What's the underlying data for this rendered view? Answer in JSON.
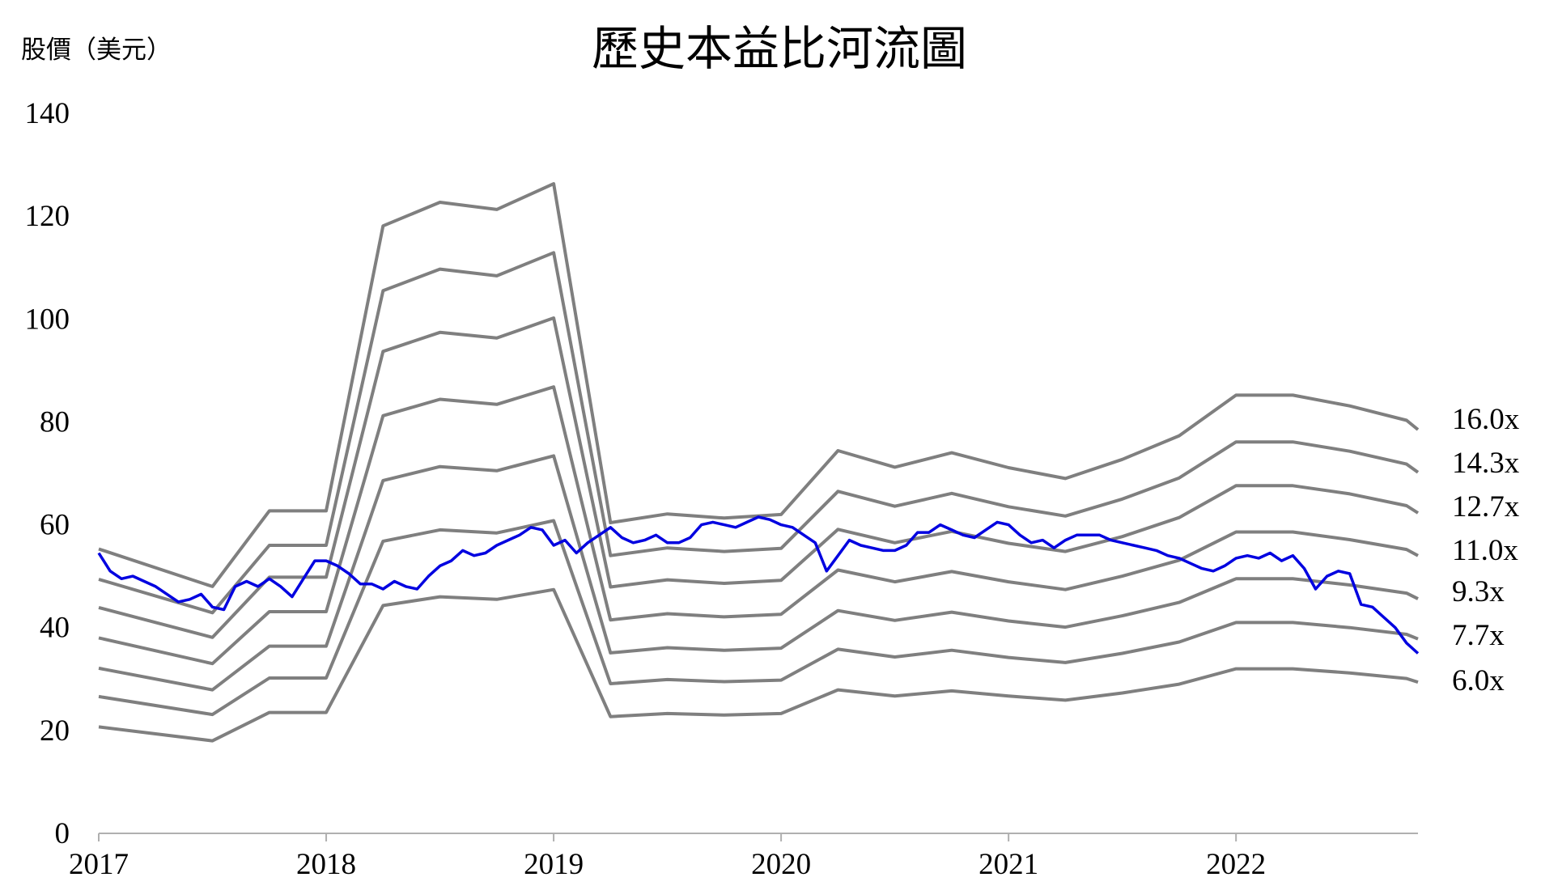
{
  "chart_data": {
    "type": "line",
    "title": "歷史本益比河流圖",
    "ylabel": "股價（美元）",
    "xlabel": "",
    "ylim": [
      0,
      140
    ],
    "y_ticks": [
      "0",
      "20",
      "40",
      "60",
      "80",
      "100",
      "120",
      "140"
    ],
    "x_range": [
      2017.0,
      2022.8
    ],
    "x_ticks": [
      "2017",
      "2018",
      "2019",
      "2020",
      "2021",
      "2022"
    ],
    "colors": {
      "bands": "#7f7f7f",
      "price": "#0000e0",
      "axis": "#b0b0b0"
    },
    "band_x": [
      2017.0,
      2017.5,
      2017.75,
      2018.0,
      2018.25,
      2018.5,
      2018.75,
      2019.0,
      2019.25,
      2019.5,
      2019.75,
      2020.0,
      2020.25,
      2020.5,
      2020.75,
      2021.0,
      2021.25,
      2021.5,
      2021.75,
      2022.0,
      2022.25,
      2022.5,
      2022.75,
      2022.8
    ],
    "bands": [
      {
        "name": "16.0x",
        "values": [
          55.3,
          48.0,
          62.7,
          62.7,
          118.1,
          122.7,
          121.3,
          126.3,
          60.4,
          62.1,
          61.3,
          62.0,
          74.4,
          71.2,
          74.0,
          71.1,
          69.0,
          72.7,
          77.3,
          85.2,
          85.2,
          83.1,
          80.3,
          78.5
        ]
      },
      {
        "name": "14.3x",
        "values": [
          49.4,
          42.9,
          56.0,
          56.0,
          105.5,
          109.7,
          108.4,
          112.9,
          54.0,
          55.5,
          54.8,
          55.4,
          66.5,
          63.6,
          66.1,
          63.5,
          61.7,
          65.0,
          69.1,
          76.1,
          76.1,
          74.3,
          71.8,
          70.2
        ]
      },
      {
        "name": "12.7x",
        "values": [
          43.9,
          38.1,
          49.8,
          49.8,
          93.7,
          97.4,
          96.3,
          100.2,
          47.9,
          49.3,
          48.6,
          49.2,
          59.1,
          56.5,
          58.7,
          56.4,
          54.8,
          57.7,
          61.4,
          67.6,
          67.6,
          66.0,
          63.7,
          62.3
        ]
      },
      {
        "name": "11.0x",
        "values": [
          38.0,
          33.0,
          43.1,
          43.1,
          81.2,
          84.4,
          83.4,
          86.8,
          41.5,
          42.7,
          42.1,
          42.6,
          51.2,
          48.9,
          50.9,
          48.9,
          47.4,
          50.0,
          53.1,
          58.6,
          58.6,
          57.1,
          55.2,
          54.0
        ]
      },
      {
        "name": "9.3x",
        "values": [
          32.1,
          27.9,
          36.4,
          36.4,
          68.6,
          71.3,
          70.5,
          73.4,
          35.1,
          36.1,
          35.6,
          36.0,
          43.3,
          41.4,
          43.0,
          41.3,
          40.1,
          42.3,
          44.9,
          49.5,
          49.5,
          48.3,
          46.7,
          45.6
        ]
      },
      {
        "name": "7.7x",
        "values": [
          26.6,
          23.1,
          30.2,
          30.2,
          56.8,
          59.0,
          58.4,
          60.8,
          29.1,
          29.9,
          29.5,
          29.8,
          35.8,
          34.3,
          35.6,
          34.2,
          33.2,
          35.0,
          37.2,
          41.0,
          41.0,
          40.0,
          38.7,
          37.8
        ]
      },
      {
        "name": "6.0x",
        "values": [
          20.7,
          18.0,
          23.5,
          23.5,
          44.3,
          46.0,
          45.5,
          47.4,
          22.7,
          23.3,
          23.0,
          23.3,
          27.9,
          26.7,
          27.7,
          26.7,
          25.9,
          27.3,
          29.0,
          32.0,
          32.0,
          31.2,
          30.1,
          29.4
        ]
      }
    ],
    "series": [
      {
        "name": "",
        "x": [
          2017.0,
          2017.05,
          2017.1,
          2017.15,
          2017.2,
          2017.25,
          2017.3,
          2017.35,
          2017.4,
          2017.45,
          2017.5,
          2017.55,
          2017.6,
          2017.65,
          2017.7,
          2017.75,
          2017.8,
          2017.85,
          2017.9,
          2017.95,
          2018.0,
          2018.05,
          2018.1,
          2018.15,
          2018.2,
          2018.25,
          2018.3,
          2018.35,
          2018.4,
          2018.45,
          2018.5,
          2018.55,
          2018.6,
          2018.65,
          2018.7,
          2018.75,
          2018.8,
          2018.85,
          2018.9,
          2018.95,
          2019.0,
          2019.05,
          2019.1,
          2019.15,
          2019.2,
          2019.25,
          2019.3,
          2019.35,
          2019.4,
          2019.45,
          2019.5,
          2019.55,
          2019.6,
          2019.65,
          2019.7,
          2019.75,
          2019.8,
          2019.85,
          2019.9,
          2019.95,
          2020.0,
          2020.05,
          2020.1,
          2020.15,
          2020.2,
          2020.25,
          2020.3,
          2020.35,
          2020.4,
          2020.45,
          2020.5,
          2020.55,
          2020.6,
          2020.65,
          2020.7,
          2020.75,
          2020.8,
          2020.85,
          2020.9,
          2020.95,
          2021.0,
          2021.05,
          2021.1,
          2021.15,
          2021.2,
          2021.25,
          2021.3,
          2021.35,
          2021.4,
          2021.45,
          2021.5,
          2021.55,
          2021.6,
          2021.65,
          2021.7,
          2021.75,
          2021.8,
          2021.85,
          2021.9,
          2021.95,
          2022.0,
          2022.05,
          2022.1,
          2022.15,
          2022.2,
          2022.25,
          2022.3,
          2022.35,
          2022.4,
          2022.45,
          2022.5,
          2022.55,
          2022.6,
          2022.65,
          2022.7,
          2022.75,
          2022.8
        ],
        "values": [
          54.5,
          51.0,
          49.5,
          50.0,
          49.0,
          48.0,
          46.5,
          45.0,
          45.5,
          46.5,
          44.0,
          43.5,
          48.0,
          49.0,
          48.0,
          49.5,
          48.0,
          46.0,
          49.5,
          53.0,
          53.0,
          52.0,
          50.5,
          48.5,
          48.5,
          47.5,
          49.0,
          48.0,
          47.5,
          50.0,
          52.0,
          53.0,
          55.0,
          54.0,
          54.5,
          56.0,
          57.0,
          58.0,
          59.5,
          59.0,
          56.0,
          57.0,
          54.5,
          56.5,
          58.0,
          59.5,
          57.5,
          56.5,
          57.0,
          58.0,
          56.5,
          56.5,
          57.5,
          60.0,
          60.5,
          60.0,
          59.5,
          60.5,
          61.5,
          61.0,
          60.0,
          59.5,
          58.0,
          56.5,
          51.0,
          54.0,
          57.0,
          56.0,
          55.5,
          55.0,
          55.0,
          56.0,
          58.5,
          58.5,
          60.0,
          59.0,
          58.0,
          57.5,
          59.0,
          60.5,
          60.0,
          58.0,
          56.5,
          57.0,
          55.5,
          57.0,
          58.0,
          58.0,
          58.0,
          57.0,
          56.5,
          56.0,
          55.5,
          55.0,
          54.0,
          53.5,
          52.5,
          51.5,
          51.0,
          52.0,
          53.5,
          54.0,
          53.5,
          54.5,
          53.0,
          54.0,
          51.5,
          47.5,
          50.0,
          51.0,
          50.5,
          44.5,
          44.0,
          42.0,
          40.0,
          37.0,
          35.0
        ]
      }
    ]
  }
}
